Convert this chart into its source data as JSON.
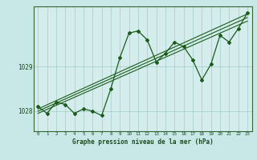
{
  "title": "Graphe pression niveau de la mer (hPa)",
  "background_color": "#c8e8e8",
  "plot_bg_color": "#d4ecec",
  "grid_color": "#a0cccc",
  "line_color": "#1a5c1a",
  "x_values": [
    0,
    1,
    2,
    3,
    4,
    5,
    6,
    7,
    8,
    9,
    10,
    11,
    12,
    13,
    14,
    15,
    16,
    17,
    18,
    19,
    20,
    21,
    22,
    23
  ],
  "y_main": [
    1028.1,
    1027.95,
    1028.2,
    1028.15,
    1027.95,
    1028.05,
    1028.0,
    1027.9,
    1028.5,
    1029.2,
    1029.75,
    1029.8,
    1029.6,
    1029.1,
    1029.3,
    1029.55,
    1029.45,
    1029.15,
    1028.7,
    1029.05,
    1029.7,
    1029.55,
    1029.85,
    1030.2
  ],
  "ylim": [
    1027.55,
    1030.35
  ],
  "yticks": [
    1028,
    1029
  ],
  "trend_lines": [
    [
      1028.05,
      1030.18
    ],
    [
      1028.0,
      1030.1
    ],
    [
      1027.95,
      1030.02
    ]
  ]
}
